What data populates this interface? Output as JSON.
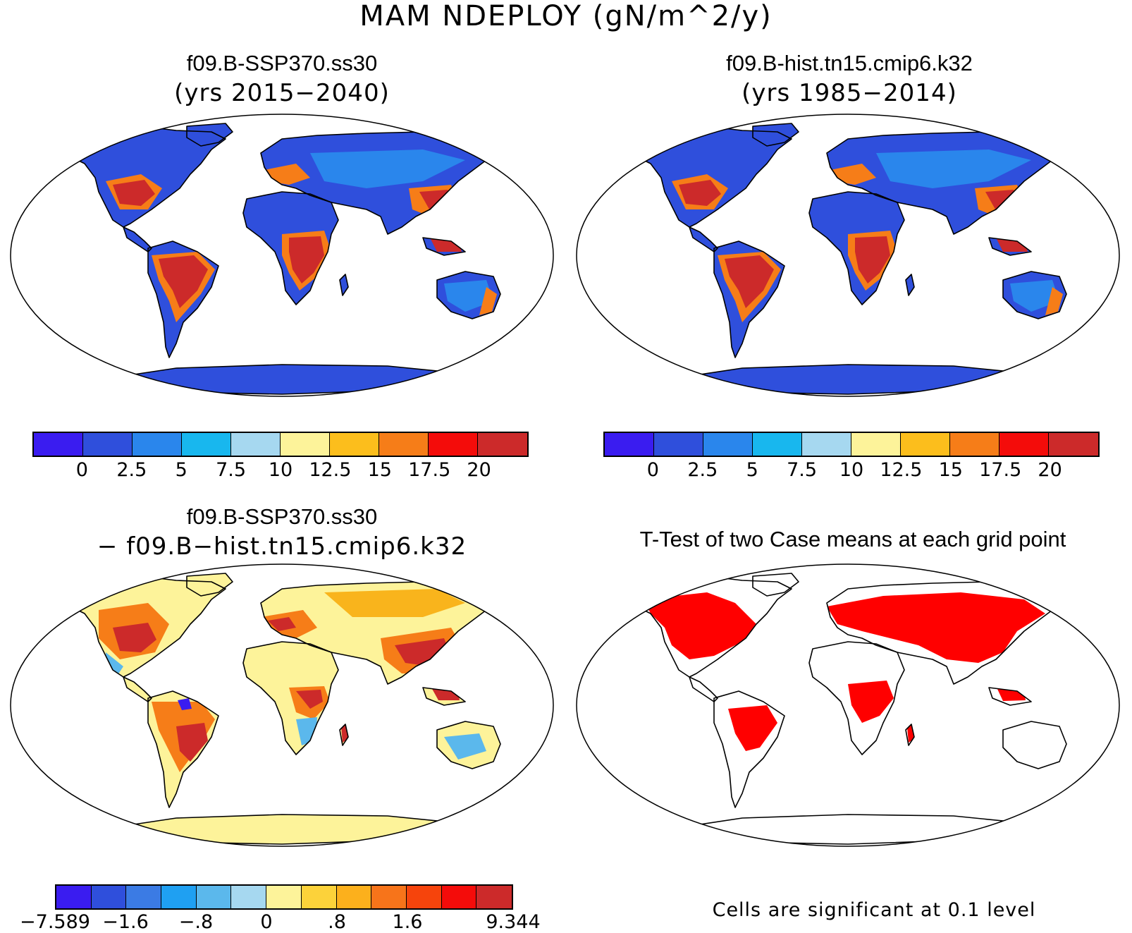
{
  "title": "MAM NDEPLOY (gN/m^2/y)",
  "panels": [
    {
      "id": "case1",
      "title": "f09.B-SSP370.ss30",
      "subtitle": "(yrs 2015−2040)",
      "scheme": "abs"
    },
    {
      "id": "case2",
      "title": "f09.B-hist.tn15.cmip6.k32",
      "subtitle": "(yrs 1985−2014)",
      "scheme": "abs"
    },
    {
      "id": "diff",
      "title": "f09.B-SSP370.ss30",
      "subtitle": "− f09.B−hist.tn15.cmip6.k32",
      "scheme": "diff"
    },
    {
      "id": "ttest",
      "title": "T-Test of two Case means at each grid point",
      "subtitle": "",
      "scheme": "sig",
      "note": "Cells are significant at 0.1 level"
    }
  ],
  "colorbars": {
    "abs": {
      "colors": [
        "#3a1cf0",
        "#2f4fdc",
        "#2a86ec",
        "#18b7ee",
        "#a6d8f0",
        "#fdf39a",
        "#fcbe1c",
        "#f67d18",
        "#f40c0a",
        "#cc2a2a"
      ],
      "labels": [
        "0",
        "2.5",
        "5",
        "7.5",
        "10",
        "12.5",
        "15",
        "17.5",
        "20"
      ]
    },
    "diff": {
      "colors": [
        "#3a1cf0",
        "#2f4fdc",
        "#3b7be4",
        "#1fa0f2",
        "#5bb8ec",
        "#a6d8f0",
        "#fdf39a",
        "#fcd23a",
        "#fcb01c",
        "#f7741a",
        "#f6440c",
        "#f40c0a",
        "#cc2a2a"
      ],
      "labels": [
        "−7.589",
        "−1.6",
        "−.8",
        "0",
        ".8",
        "1.6",
        "9.344"
      ]
    },
    "sig": {
      "colors": [
        "#ff0000",
        "#ffffff"
      ]
    }
  },
  "map_colors": {
    "ocean": "#ffffff",
    "coast": "#000000",
    "abs_background": "#2f4fdc",
    "abs_high": "#cc2a2a",
    "abs_mid": "#f67d18",
    "abs_light": "#2a86ec",
    "diff_background": "#fdf39a",
    "diff_high": "#cc2a2a",
    "diff_mid": "#f67d18",
    "diff_low": "#5bb8ec",
    "sig_color": "#ff0000"
  }
}
